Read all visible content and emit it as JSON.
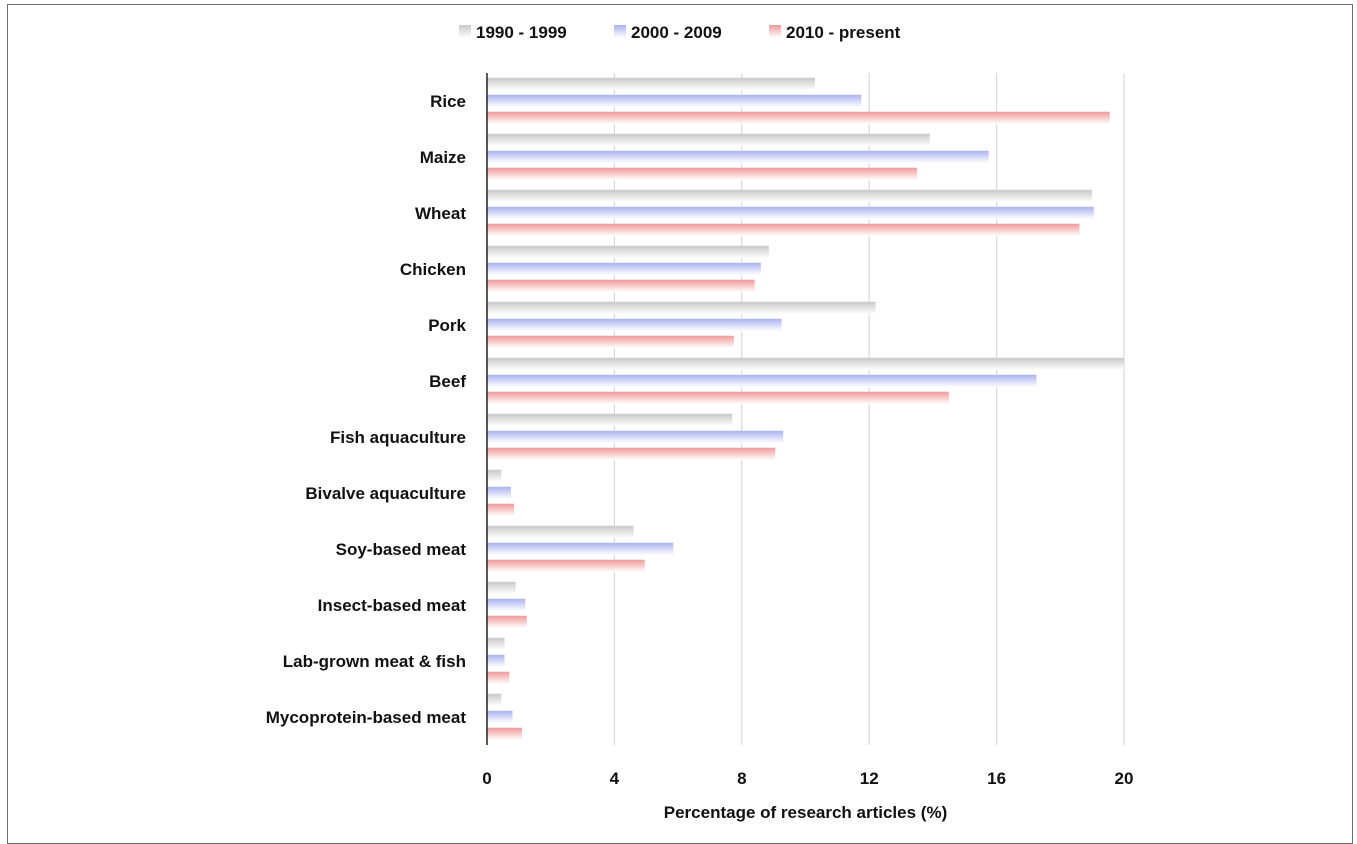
{
  "chart_data": {
    "type": "bar",
    "orientation": "horizontal",
    "title": "",
    "xlabel": "Percentage of research articles (%)",
    "ylabel": "",
    "xlim": [
      0,
      20
    ],
    "xticks": [
      0,
      4,
      8,
      12,
      16,
      20
    ],
    "grid": true,
    "legend_position": "top",
    "categories": [
      "Rice",
      "Maize",
      "Wheat",
      "Chicken",
      "Pork",
      "Beef",
      "Fish aquaculture",
      "Bivalve aquaculture",
      "Soy-based meat",
      "Insect-based meat",
      "Lab-grown meat & fish",
      "Mycoprotein-based meat"
    ],
    "series": [
      {
        "name": "1990 - 1999",
        "color": "#c8c8c8",
        "values": [
          10.3,
          13.9,
          19.0,
          8.85,
          12.2,
          20.0,
          7.7,
          0.45,
          4.6,
          0.9,
          0.55,
          0.45
        ]
      },
      {
        "name": "2000 - 2009",
        "color": "#aab3ee",
        "values": [
          11.75,
          15.75,
          19.05,
          8.6,
          9.25,
          17.25,
          9.3,
          0.75,
          5.85,
          1.2,
          0.55,
          0.8
        ]
      },
      {
        "name": "2010 - present",
        "color": "#ee9a9a",
        "values": [
          19.55,
          13.5,
          18.6,
          8.4,
          7.75,
          14.5,
          9.05,
          0.85,
          4.95,
          1.25,
          0.7,
          1.1
        ]
      }
    ]
  }
}
